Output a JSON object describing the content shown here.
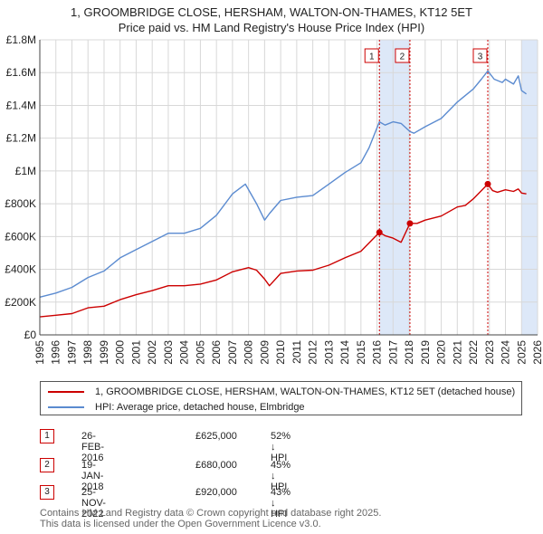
{
  "title_line1": "1, GROOMBRIDGE CLOSE, HERSHAM, WALTON-ON-THAMES, KT12 5ET",
  "title_line2": "Price paid vs. HM Land Registry's House Price Index (HPI)",
  "colors": {
    "property": "#cc0000",
    "hpi": "#5b8bd0",
    "shade": "#dde8f8",
    "grid": "#d8d8d8"
  },
  "legend": {
    "property_label": "1, GROOMBRIDGE CLOSE, HERSHAM, WALTON-ON-THAMES, KT12 5ET (detached house)",
    "hpi_label": "HPI: Average price, detached house, Elmbridge"
  },
  "sales": [
    {
      "num": "1",
      "date": "26-FEB-2016",
      "price": "£625,000",
      "hpi": "52% ↓ HPI"
    },
    {
      "num": "2",
      "date": "19-JAN-2018",
      "price": "£680,000",
      "hpi": "45% ↓ HPI"
    },
    {
      "num": "3",
      "date": "25-NOV-2022",
      "price": "£920,000",
      "hpi": "43% ↓ HPI"
    }
  ],
  "footer_line1": "Contains HM Land Registry data © Crown copyright and database right 2025.",
  "footer_line2": "This data is licensed under the Open Government Licence v3.0.",
  "chart_data": {
    "type": "line",
    "title": "1, GROOMBRIDGE CLOSE, HERSHAM, WALTON-ON-THAMES, KT12 5ET — Price paid vs. HM Land Registry's House Price Index (HPI)",
    "xlabel": "",
    "ylabel": "",
    "xlim": [
      1995,
      2026
    ],
    "ylim": [
      0,
      1800000
    ],
    "grid": true,
    "x_ticks": [
      "1995",
      "1996",
      "1997",
      "1998",
      "1999",
      "2000",
      "2001",
      "2002",
      "2003",
      "2004",
      "2005",
      "2006",
      "2007",
      "2008",
      "2009",
      "2010",
      "2011",
      "2012",
      "2013",
      "2014",
      "2015",
      "2016",
      "2017",
      "2018",
      "2019",
      "2020",
      "2021",
      "2022",
      "2023",
      "2024",
      "2025",
      "2026"
    ],
    "y_ticks": [
      {
        "value": 0,
        "label": "£0"
      },
      {
        "value": 200000,
        "label": "£200K"
      },
      {
        "value": 400000,
        "label": "£400K"
      },
      {
        "value": 600000,
        "label": "£600K"
      },
      {
        "value": 800000,
        "label": "£800K"
      },
      {
        "value": 1000000,
        "label": "£1M"
      },
      {
        "value": 1200000,
        "label": "£1.2M"
      },
      {
        "value": 1400000,
        "label": "£1.4M"
      },
      {
        "value": 1600000,
        "label": "£1.6M"
      },
      {
        "value": 1800000,
        "label": "£1.8M"
      }
    ],
    "series": [
      {
        "name": "1, GROOMBRIDGE CLOSE, HERSHAM, WALTON-ON-THAMES, KT12 5ET (detached house)",
        "x": [
          1995,
          1996,
          1997,
          1998,
          1999,
          2000,
          2001,
          2002,
          2003,
          2004,
          2005,
          2006,
          2007,
          2008,
          2008.5,
          2009,
          2009.3,
          2010,
          2011,
          2012,
          2013,
          2014,
          2015,
          2016.15,
          2016.5,
          2017,
          2017.5,
          2018.05,
          2018.5,
          2019,
          2020,
          2021,
          2021.5,
          2022,
          2022.9,
          2023.2,
          2023.5,
          2024,
          2024.5,
          2024.8,
          2025,
          2025.3
        ],
        "values": [
          110000,
          120000,
          130000,
          165000,
          175000,
          215000,
          245000,
          270000,
          300000,
          300000,
          310000,
          335000,
          385000,
          410000,
          395000,
          340000,
          300000,
          375000,
          390000,
          395000,
          425000,
          470000,
          510000,
          625000,
          605000,
          590000,
          565000,
          680000,
          680000,
          700000,
          725000,
          780000,
          790000,
          830000,
          920000,
          880000,
          870000,
          885000,
          875000,
          890000,
          865000,
          860000
        ]
      },
      {
        "name": "HPI: Average price, detached house, Elmbridge",
        "x": [
          1995,
          1996,
          1997,
          1998,
          1999,
          2000,
          2001,
          2002,
          2003,
          2004,
          2005,
          2006,
          2007,
          2007.8,
          2008.5,
          2009,
          2009.3,
          2010,
          2011,
          2012,
          2013,
          2014,
          2015,
          2015.5,
          2016.15,
          2016.5,
          2017,
          2017.5,
          2018.05,
          2018.3,
          2019,
          2020,
          2021,
          2022,
          2022.5,
          2022.9,
          2023.3,
          2023.8,
          2024,
          2024.5,
          2024.8,
          2025,
          2025.3
        ],
        "values": [
          230000,
          255000,
          290000,
          350000,
          390000,
          470000,
          520000,
          570000,
          620000,
          620000,
          650000,
          730000,
          860000,
          920000,
          800000,
          700000,
          740000,
          820000,
          840000,
          850000,
          920000,
          990000,
          1050000,
          1140000,
          1300000,
          1280000,
          1300000,
          1290000,
          1240000,
          1230000,
          1270000,
          1320000,
          1420000,
          1500000,
          1560000,
          1610000,
          1560000,
          1540000,
          1560000,
          1530000,
          1580000,
          1490000,
          1470000
        ]
      }
    ],
    "sales": [
      {
        "label": "1",
        "x": 2016.15,
        "value": 625000
      },
      {
        "label": "2",
        "x": 2018.05,
        "value": 680000
      },
      {
        "label": "3",
        "x": 2022.9,
        "value": 920000
      }
    ],
    "shaded_ranges": [
      [
        2016.15,
        2018.05
      ],
      [
        2025.0,
        2026.0
      ]
    ]
  }
}
